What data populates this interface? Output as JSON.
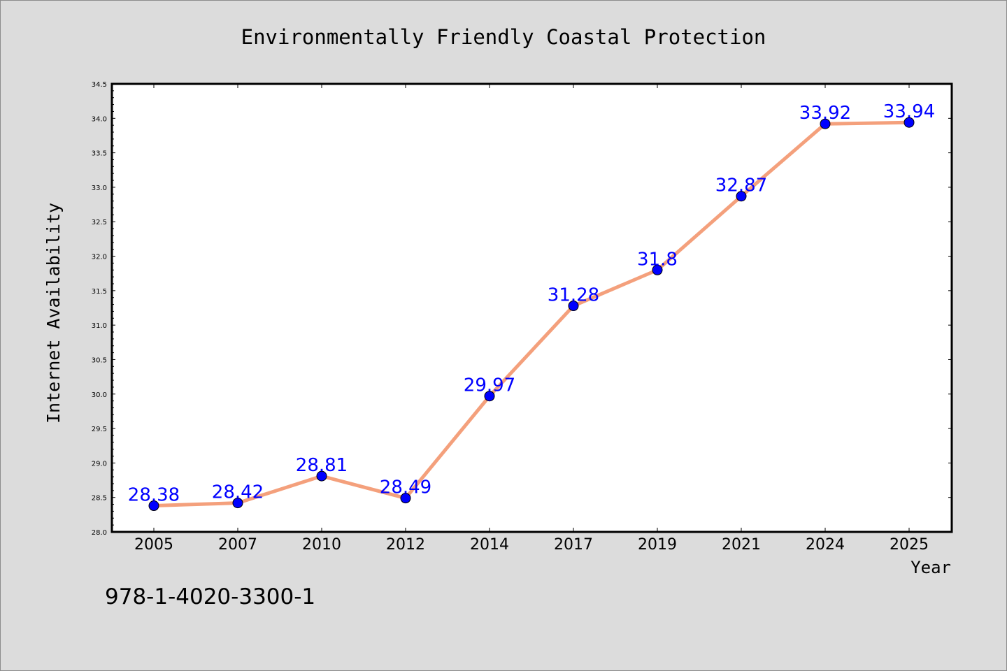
{
  "chart_data": {
    "type": "line",
    "title": "Environmentally Friendly Coastal Protection",
    "xlabel": "Year",
    "ylabel": "Internet Availability",
    "categories": [
      "2005",
      "2007",
      "2010",
      "2012",
      "2014",
      "2017",
      "2019",
      "2021",
      "2024",
      "2025"
    ],
    "series": [
      {
        "values": [
          28.38,
          28.42,
          28.81,
          28.49,
          29.97,
          31.28,
          31.8,
          32.87,
          33.92,
          33.94
        ]
      }
    ],
    "data_labels": [
      "28.38",
      "28.42",
      "28.81",
      "28.49",
      "29.97",
      "31.28",
      "31.8",
      "32.87",
      "33.92",
      "33.94"
    ],
    "ylim": [
      28.0,
      34.5
    ],
    "yticks": [
      "28.0",
      "28.5",
      "29.0",
      "29.5",
      "30.0",
      "30.5",
      "31.0",
      "31.5",
      "32.0",
      "32.5",
      "33.0",
      "33.5",
      "34.0",
      "34.5"
    ],
    "grid": false,
    "legend": "none",
    "colors": {
      "line": "#f4a07c",
      "marker": "#0000ff",
      "label": "#0000ff",
      "background": "#dcdcdc",
      "plot_background": "#ffffff"
    }
  },
  "footer": {
    "isbn": "978-1-4020-3300-1"
  }
}
